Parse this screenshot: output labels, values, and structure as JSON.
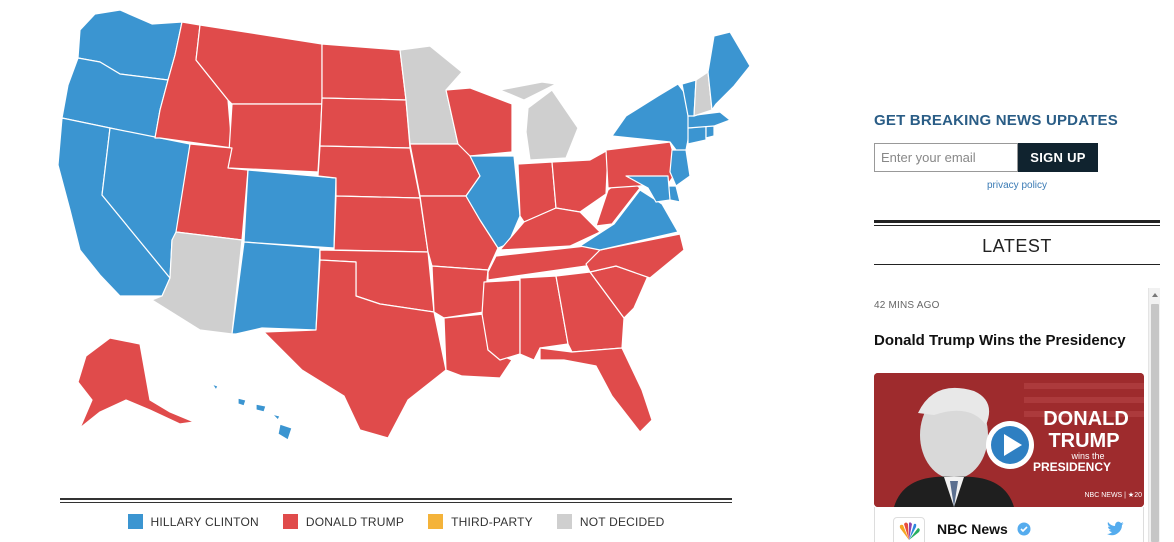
{
  "map": {
    "colors": {
      "clinton": "#3b95d1",
      "trump": "#e04b4b",
      "third_party": "#f4b33a",
      "not_decided": "#cfcfcf"
    },
    "states": [
      {
        "name": "WA",
        "winner": "clinton"
      },
      {
        "name": "OR",
        "winner": "clinton"
      },
      {
        "name": "CA",
        "winner": "clinton"
      },
      {
        "name": "NV",
        "winner": "clinton"
      },
      {
        "name": "ID",
        "winner": "trump"
      },
      {
        "name": "MT",
        "winner": "trump"
      },
      {
        "name": "WY",
        "winner": "trump"
      },
      {
        "name": "UT",
        "winner": "trump"
      },
      {
        "name": "AZ",
        "winner": "not_decided"
      },
      {
        "name": "CO",
        "winner": "clinton"
      },
      {
        "name": "NM",
        "winner": "clinton"
      },
      {
        "name": "ND",
        "winner": "trump"
      },
      {
        "name": "SD",
        "winner": "trump"
      },
      {
        "name": "NE",
        "winner": "trump"
      },
      {
        "name": "KS",
        "winner": "trump"
      },
      {
        "name": "OK",
        "winner": "trump"
      },
      {
        "name": "TX",
        "winner": "trump"
      },
      {
        "name": "MN",
        "winner": "not_decided"
      },
      {
        "name": "IA",
        "winner": "trump"
      },
      {
        "name": "MO",
        "winner": "trump"
      },
      {
        "name": "AR",
        "winner": "trump"
      },
      {
        "name": "LA",
        "winner": "trump"
      },
      {
        "name": "WI",
        "winner": "trump"
      },
      {
        "name": "IL",
        "winner": "clinton"
      },
      {
        "name": "MI",
        "winner": "not_decided"
      },
      {
        "name": "IN",
        "winner": "trump"
      },
      {
        "name": "OH",
        "winner": "trump"
      },
      {
        "name": "KY",
        "winner": "trump"
      },
      {
        "name": "TN",
        "winner": "trump"
      },
      {
        "name": "MS",
        "winner": "trump"
      },
      {
        "name": "AL",
        "winner": "trump"
      },
      {
        "name": "GA",
        "winner": "trump"
      },
      {
        "name": "FL",
        "winner": "trump"
      },
      {
        "name": "SC",
        "winner": "trump"
      },
      {
        "name": "NC",
        "winner": "trump"
      },
      {
        "name": "VA",
        "winner": "clinton"
      },
      {
        "name": "WV",
        "winner": "trump"
      },
      {
        "name": "PA",
        "winner": "trump"
      },
      {
        "name": "NY",
        "winner": "clinton"
      },
      {
        "name": "NJ",
        "winner": "clinton"
      },
      {
        "name": "DE",
        "winner": "clinton"
      },
      {
        "name": "MD",
        "winner": "clinton"
      },
      {
        "name": "CT",
        "winner": "clinton"
      },
      {
        "name": "RI",
        "winner": "clinton"
      },
      {
        "name": "MA",
        "winner": "clinton"
      },
      {
        "name": "VT",
        "winner": "clinton"
      },
      {
        "name": "NH",
        "winner": "not_decided"
      },
      {
        "name": "ME",
        "winner": "clinton"
      },
      {
        "name": "AK",
        "winner": "trump"
      },
      {
        "name": "HI",
        "winner": "clinton"
      }
    ]
  },
  "legend": {
    "items": [
      {
        "label": "HILLARY CLINTON",
        "color": "#3b95d1"
      },
      {
        "label": "DONALD TRUMP",
        "color": "#e04b4b"
      },
      {
        "label": "THIRD-PARTY",
        "color": "#f4b33a"
      },
      {
        "label": "NOT DECIDED",
        "color": "#cfcfcf"
      }
    ]
  },
  "newsletter": {
    "title": "GET BREAKING NEWS UPDATES",
    "email_placeholder": "Enter your email",
    "signup_label": "SIGN UP",
    "privacy_label": "privacy policy"
  },
  "latest": {
    "heading": "LATEST",
    "items": [
      {
        "time": "42 MINS AGO",
        "headline": "Donald Trump Wins the Presidency",
        "thumbnail": {
          "overlay_line1": "DONALD",
          "overlay_line2": "TRUMP",
          "overlay_line3": "wins the",
          "overlay_line4": "PRESIDENCY",
          "network_tag": "NBC NEWS | ★20",
          "play_icon": "play-icon"
        },
        "tweet": {
          "account_name": "NBC News",
          "verified_icon": "verified-icon",
          "service_icon": "twitter-icon"
        }
      }
    ]
  }
}
